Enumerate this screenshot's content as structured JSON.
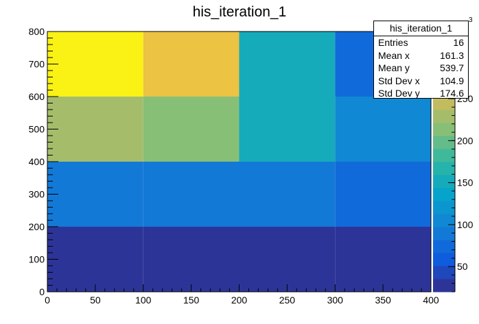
{
  "title": "his_iteration_1",
  "stats": {
    "title": "his_iteration_1",
    "rows": [
      {
        "label": "Entries",
        "value": "16"
      },
      {
        "label": "Mean x",
        "value": "161.3"
      },
      {
        "label": "Mean y",
        "value": "539.7"
      },
      {
        "label": "Std Dev x",
        "value": "104.9"
      },
      {
        "label": "Std Dev y",
        "value": "174.6"
      }
    ]
  },
  "palette_exponent": "3",
  "chart_data": {
    "type": "heatmap",
    "title": "his_iteration_1",
    "xlabel": "",
    "ylabel": "",
    "x_edges": [
      0,
      100,
      200,
      300,
      400
    ],
    "y_edges": [
      0,
      200,
      400,
      600,
      800
    ],
    "xlim": [
      0,
      400
    ],
    "ylim": [
      0,
      800
    ],
    "x_ticks": [
      0,
      50,
      100,
      150,
      200,
      250,
      300,
      350,
      400
    ],
    "y_ticks": [
      0,
      100,
      200,
      300,
      400,
      500,
      600,
      700,
      800
    ],
    "z_ticks": [
      50,
      100,
      150,
      200,
      250
    ],
    "zlim": [
      20,
      330
    ],
    "colormap": "ROOT kBird",
    "grid": false,
    "values": [
      [
        30,
        30,
        30,
        30
      ],
      [
        90,
        90,
        90,
        80
      ],
      [
        230,
        210,
        150,
        110
      ],
      [
        330,
        280,
        150,
        80
      ]
    ]
  }
}
